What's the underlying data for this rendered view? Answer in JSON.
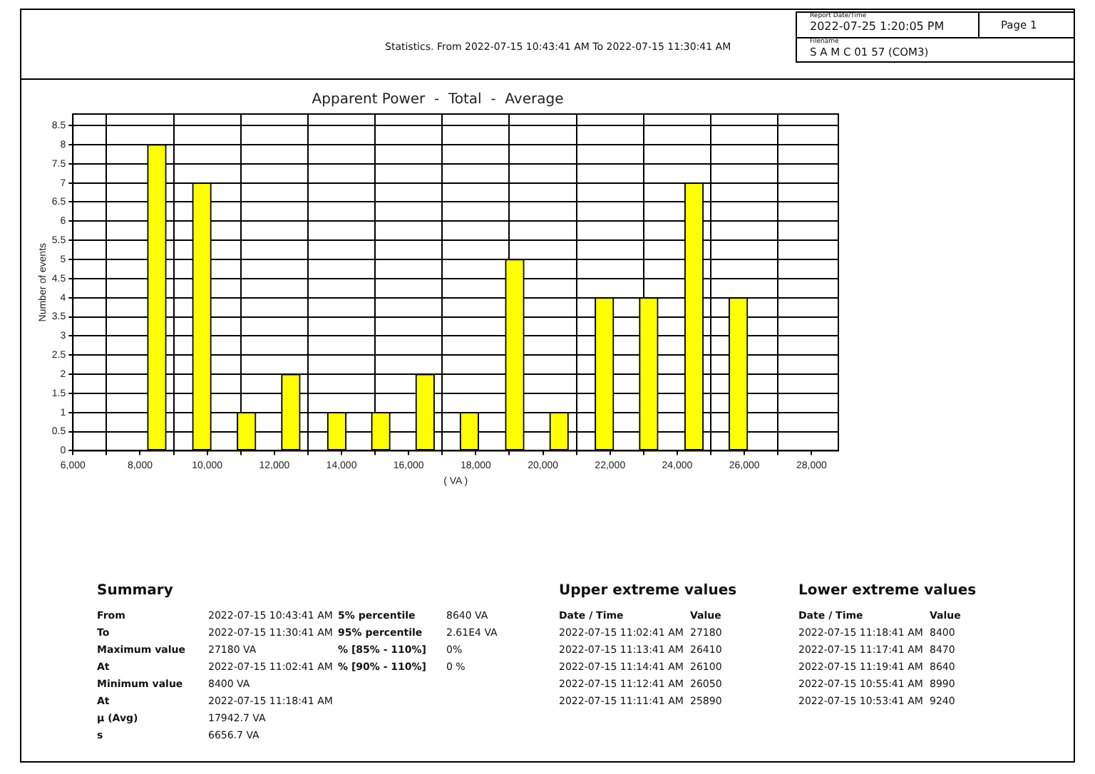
{
  "chart_data": {
    "type": "bar",
    "title": "Apparent Power  -  Total  -  Average",
    "xlabel": "( VA )",
    "ylabel": "Number of events",
    "x": [
      8500,
      9840,
      11170,
      12490,
      13860,
      15170,
      16490,
      17810,
      19160,
      20480,
      21830,
      23150,
      24500,
      25820
    ],
    "values": [
      8,
      7,
      1,
      2,
      1,
      1,
      2,
      1,
      5,
      1,
      4,
      4,
      7,
      4
    ],
    "color": "#ffff00",
    "xlim": [
      6000,
      28800
    ],
    "xticks": [
      {
        "value": 6000,
        "label": "6,000"
      },
      {
        "value": 7000,
        "label": null
      },
      {
        "value": 8000,
        "label": "8,000"
      },
      {
        "value": 9000,
        "label": null
      },
      {
        "value": 10000,
        "label": "10,000"
      },
      {
        "value": 11000,
        "label": null
      },
      {
        "value": 12000,
        "label": "12,000"
      },
      {
        "value": 13000,
        "label": null
      },
      {
        "value": 14000,
        "label": "14,000"
      },
      {
        "value": 15000,
        "label": null
      },
      {
        "value": 16000,
        "label": "16,000"
      },
      {
        "value": 17000,
        "label": null
      },
      {
        "value": 18000,
        "label": "18,000"
      },
      {
        "value": 19000,
        "label": null
      },
      {
        "value": 20000,
        "label": "20,000"
      },
      {
        "value": 21000,
        "label": null
      },
      {
        "value": 22000,
        "label": "22,000"
      },
      {
        "value": 23000,
        "label": null
      },
      {
        "value": 24000,
        "label": "24,000"
      },
      {
        "value": 25000,
        "label": null
      },
      {
        "value": 26000,
        "label": "26,000"
      },
      {
        "value": 27000,
        "label": null
      },
      {
        "value": 28000,
        "label": "28,000"
      }
    ],
    "ylim": [
      0,
      8.8
    ],
    "yticks": [
      0,
      0.5,
      1,
      1.5,
      2,
      2.5,
      3,
      3.5,
      4,
      4.5,
      5,
      5.5,
      6,
      6.5,
      7,
      7.5,
      8,
      8.5
    ],
    "grid": true,
    "annotations": [
      "Statistics. From 2022-07-15 10:43:41 AM To 2022-07-15 11:30:41 AM",
      "Report Date/Time",
      "2022-07-25 1:20:05 PM",
      "Page 1",
      "Filename",
      "S A M C 01 57 (COM3)",
      "Summary",
      "From",
      "2022-07-15 10:43:41 AM",
      "5% percentile",
      "8640 VA",
      "To",
      "2022-07-15 11:30:41 AM",
      "95% percentile",
      "2.61E4 VA",
      "Maximum value",
      "27180  VA",
      "% [85% - 110%]",
      "0%",
      "At",
      "2022-07-15 11:02:41 AM",
      "% [90% - 110%]",
      "0 %",
      "Minimum value",
      "8400  VA",
      "At",
      "2022-07-15 11:18:41 AM",
      "µ (Avg)",
      "17942.7 VA",
      "s",
      "6656.7 VA",
      "Upper extreme values",
      "Date / Time",
      "Value",
      "2022-07-15 11:02:41 AM",
      "27180",
      "2022-07-15 11:13:41 AM",
      "26410",
      "2022-07-15 11:14:41 AM",
      "26100",
      "2022-07-15 11:12:41 AM",
      "26050",
      "2022-07-15 11:11:41 AM",
      "25890",
      "Lower extreme values",
      "Date / Time",
      "Value",
      "2022-07-15 11:18:41 AM",
      "8400",
      "2022-07-15 11:17:41 AM",
      "8470",
      "2022-07-15 11:19:41 AM",
      "8640",
      "2022-07-15 10:55:41 AM",
      "8990",
      "2022-07-15 10:53:41 AM",
      "9240"
    ]
  }
}
